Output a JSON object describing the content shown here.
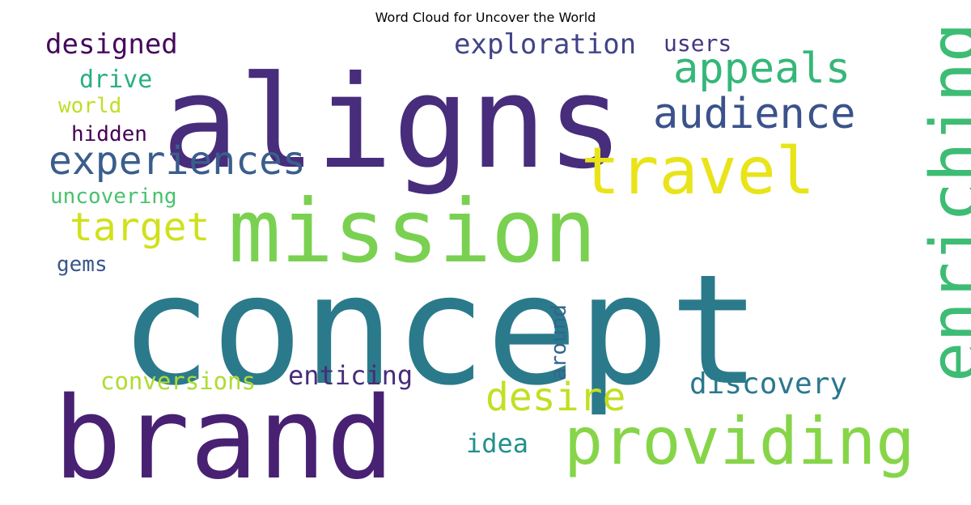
{
  "title": "Word Cloud for Uncover the World",
  "words": [
    {
      "text": "concept",
      "color": "#2b7a8b"
    },
    {
      "text": "aligns",
      "color": "#472d7b"
    },
    {
      "text": "mission",
      "color": "#7ad151"
    },
    {
      "text": "brand",
      "color": "#482173"
    },
    {
      "text": "providing",
      "color": "#86d549"
    },
    {
      "text": "enriching",
      "color": "#3dbc74"
    },
    {
      "text": "travel",
      "color": "#e8e419"
    },
    {
      "text": "experiences",
      "color": "#3a5e8c"
    },
    {
      "text": "appeals",
      "color": "#35b779"
    },
    {
      "text": "audience",
      "color": "#3b528b"
    },
    {
      "text": "target",
      "color": "#d0e11c"
    },
    {
      "text": "desire",
      "color": "#c2df23"
    },
    {
      "text": "discovery",
      "color": "#2a788e"
    },
    {
      "text": "exploration",
      "color": "#414487"
    },
    {
      "text": "designed",
      "color": "#46085c"
    },
    {
      "text": "users",
      "color": "#453781"
    },
    {
      "text": "drive",
      "color": "#29af7f"
    },
    {
      "text": "world",
      "color": "#bddf26"
    },
    {
      "text": "hidden",
      "color": "#440154"
    },
    {
      "text": "uncovering",
      "color": "#4ac16d"
    },
    {
      "text": "gems",
      "color": "#39568c"
    },
    {
      "text": "conversions",
      "color": "#addc30"
    },
    {
      "text": "enticing",
      "color": "#472c7a"
    },
    {
      "text": "around",
      "color": "#31668e"
    },
    {
      "text": "idea",
      "color": "#21918c"
    }
  ]
}
